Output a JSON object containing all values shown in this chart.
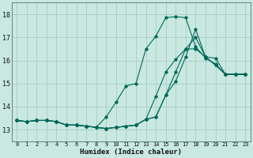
{
  "title": "",
  "xlabel": "Humidex (Indice chaleur)",
  "bg_color": "#c8e8e0",
  "grid_color": "#a8ccc8",
  "line_color": "#006858",
  "xlim": [
    -0.5,
    23.5
  ],
  "ylim": [
    12.5,
    18.5
  ],
  "xticks": [
    0,
    1,
    2,
    3,
    4,
    5,
    6,
    7,
    8,
    9,
    10,
    11,
    12,
    13,
    14,
    15,
    16,
    17,
    18,
    19,
    20,
    21,
    22,
    23
  ],
  "yticks": [
    13,
    14,
    15,
    16,
    17,
    18
  ],
  "series": [
    [
      13.4,
      13.35,
      13.4,
      13.4,
      13.35,
      13.2,
      13.2,
      13.15,
      13.1,
      13.55,
      14.2,
      14.9,
      15.0,
      16.5,
      17.05,
      17.85,
      17.9,
      17.85,
      16.6,
      16.1,
      15.85,
      15.4,
      15.4,
      15.4
    ],
    [
      13.4,
      13.35,
      13.4,
      13.4,
      13.35,
      13.2,
      13.2,
      13.15,
      13.1,
      13.05,
      13.1,
      13.15,
      13.2,
      13.45,
      14.45,
      15.5,
      16.05,
      16.5,
      17.0,
      16.15,
      15.8,
      15.4,
      15.4,
      15.4
    ],
    [
      13.4,
      13.35,
      13.4,
      13.4,
      13.35,
      13.2,
      13.2,
      13.15,
      13.1,
      13.05,
      13.1,
      13.15,
      13.2,
      13.45,
      13.55,
      14.5,
      15.1,
      16.15,
      17.35,
      16.15,
      15.8,
      15.4,
      15.4,
      15.4
    ],
    [
      13.4,
      13.35,
      13.4,
      13.4,
      13.35,
      13.2,
      13.2,
      13.15,
      13.1,
      13.05,
      13.1,
      13.15,
      13.2,
      13.45,
      13.55,
      14.5,
      15.5,
      16.5,
      16.5,
      16.15,
      16.1,
      15.4,
      15.4,
      15.4
    ]
  ]
}
